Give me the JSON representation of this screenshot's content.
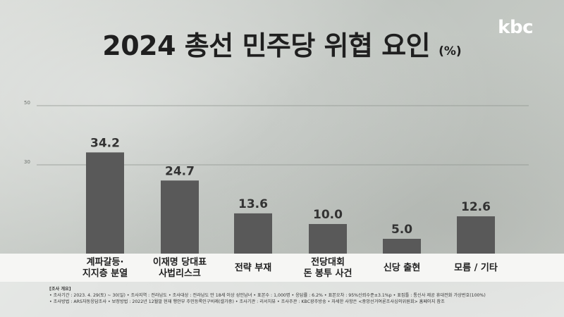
{
  "title": "2024 총선 민주당 위협 요인",
  "unit": "(%)",
  "logo": "kbc",
  "chart_data": {
    "type": "bar",
    "categories": [
      [
        "계파갈등·",
        "지지층 분열"
      ],
      [
        "이재명 당대표",
        "사법리스크"
      ],
      [
        "전략 부재"
      ],
      [
        "전당대회",
        "돈 봉투 사건"
      ],
      [
        "신당 출현"
      ],
      [
        "모름 / 기타"
      ]
    ],
    "values": [
      34.2,
      24.7,
      13.6,
      10.0,
      5.0,
      12.6
    ],
    "value_labels": [
      "34.2",
      "24.7",
      "13.6",
      "10.0",
      "5.0",
      "12.6"
    ],
    "y_ticks": [
      30,
      50
    ],
    "y_tick_labels": [
      "30",
      "50"
    ],
    "ylim": [
      0,
      50
    ],
    "grid": true,
    "bar_color": "#595959"
  },
  "footnote": {
    "heading": "[조사 개요]",
    "line1": "• 조사기간 : 2023. 4. 29(토) ~ 30(일)   • 조사지역 : 전라남도   • 조사대상 : 전라남도 만 18세 이상 성인남녀   • 표본수 : 1,000명   • 응답률 : 6.2%   • 표본오차 : 95%신뢰수준±3.1%p   • 표집틀 : 통신사 제공 휴대전화 가상번호(100%)",
    "line2": "• 조사방법 : ARS자동응답조사   • 보정방법 : 2022년 12월말 현재 행안부 주민등록인구비례(셀가중)   • 조사기관 : 리서치뷰   • 조사주관 : KBC광주방송   • 자세한 사항은 <중앙선거여론조사심의위원회> 홈페이지 참조"
  }
}
